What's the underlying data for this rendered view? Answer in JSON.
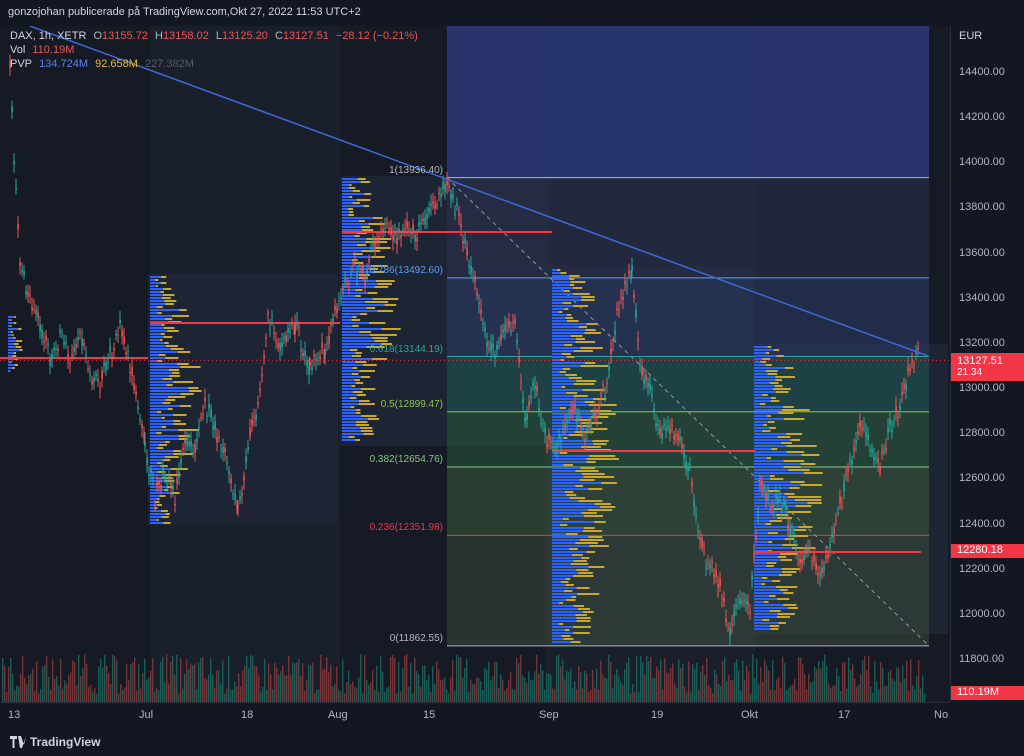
{
  "header": {
    "publish_line": "gonzojohan publicerade på TradingView.com,Okt 27, 2022 11:53 UTC+2"
  },
  "legend": {
    "symbol": "DAX, 1h, XETR",
    "open_label": "O",
    "open": "13155.72",
    "high_label": "H",
    "high": "13158.02",
    "low_label": "L",
    "low": "13125.20",
    "close_label": "C",
    "close": "13127.51",
    "change": "−28.12 (−0.21%)",
    "vol_label": "Vol",
    "vol": "110.19M",
    "pvp_label": "PVP",
    "pvp_1": "134.724M",
    "pvp_2": "92.658M",
    "pvp_3": "227.382M"
  },
  "price_axis": {
    "currency": "EUR",
    "ticks": [
      "14400.00",
      "14200.00",
      "14000.00",
      "13800.00",
      "13600.00",
      "13400.00",
      "13200.00",
      "13000.00",
      "12800.00",
      "12600.00",
      "12400.00",
      "12200.00",
      "12000.00",
      "11800.00"
    ],
    "current_price": "13127.51",
    "countdown": "21:34",
    "poc_price": "12280.18",
    "volume_tag": "110.19M"
  },
  "time_axis": {
    "ticks": [
      "13",
      "Jul",
      "18",
      "Aug",
      "15",
      "Sep",
      "19",
      "Okt",
      "17",
      "No"
    ]
  },
  "fib": {
    "levels": [
      {
        "label": "1(13936.40)",
        "price": 13936.4,
        "color": "#b2b5be"
      },
      {
        "label": "0.786(13492.60)",
        "price": 13492.6,
        "color": "#5b9cf6"
      },
      {
        "label": "0.618(13144.19)",
        "price": 13144.19,
        "color": "#26a69a"
      },
      {
        "label": "0.5(12899.47)",
        "price": 12899.47,
        "color": "#8bc34a"
      },
      {
        "label": "0.382(12654.76)",
        "price": 12654.76,
        "color": "#81c784"
      },
      {
        "label": "0.236(12351.98)",
        "price": 12351.98,
        "color": "#f23645"
      },
      {
        "label": "0(11862.55)",
        "price": 11862.55,
        "color": "#b2b5be"
      }
    ]
  },
  "colors": {
    "up": "#26a69a",
    "down": "#ef5350",
    "volume_profile_up": "#2962ff",
    "volume_profile_down": "#c8a82b",
    "poc": "#f23645",
    "trendline": "#3d6ad6"
  },
  "footer": {
    "logo_text": "TradingView"
  }
}
